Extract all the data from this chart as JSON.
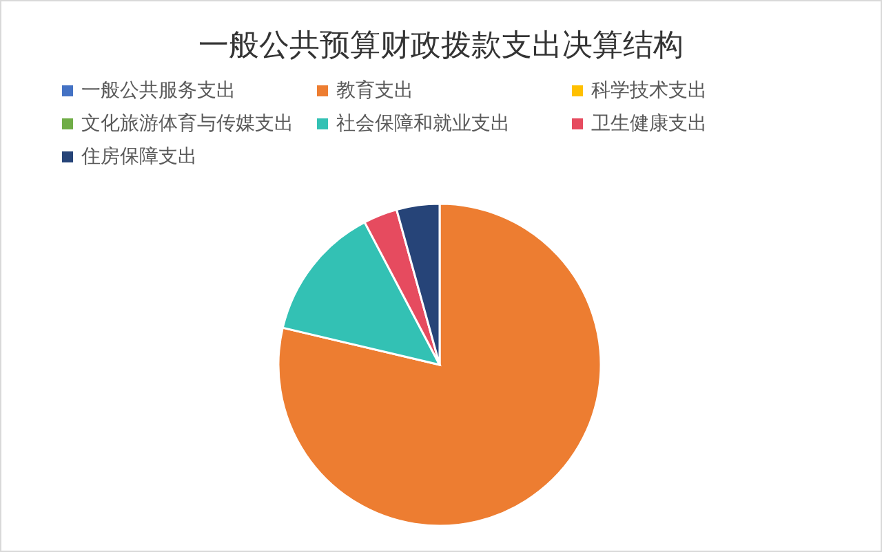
{
  "chart_data": {
    "type": "pie",
    "title": "一般公共预算财政拨款支出决算结构",
    "categories": [
      "一般公共服务支出",
      "教育支出",
      "科学技术支出",
      "文化旅游体育与传媒支出",
      "社会保障和就业支出",
      "卫生健康支出",
      "住房保障支出"
    ],
    "values": [
      0,
      78.7,
      0,
      0,
      13.6,
      3.4,
      4.3
    ],
    "colors": [
      "#4472c4",
      "#ed7d31",
      "#ffc000",
      "#70ad47",
      "#33c1b4",
      "#e64b5f",
      "#264478"
    ],
    "legend": "top"
  }
}
